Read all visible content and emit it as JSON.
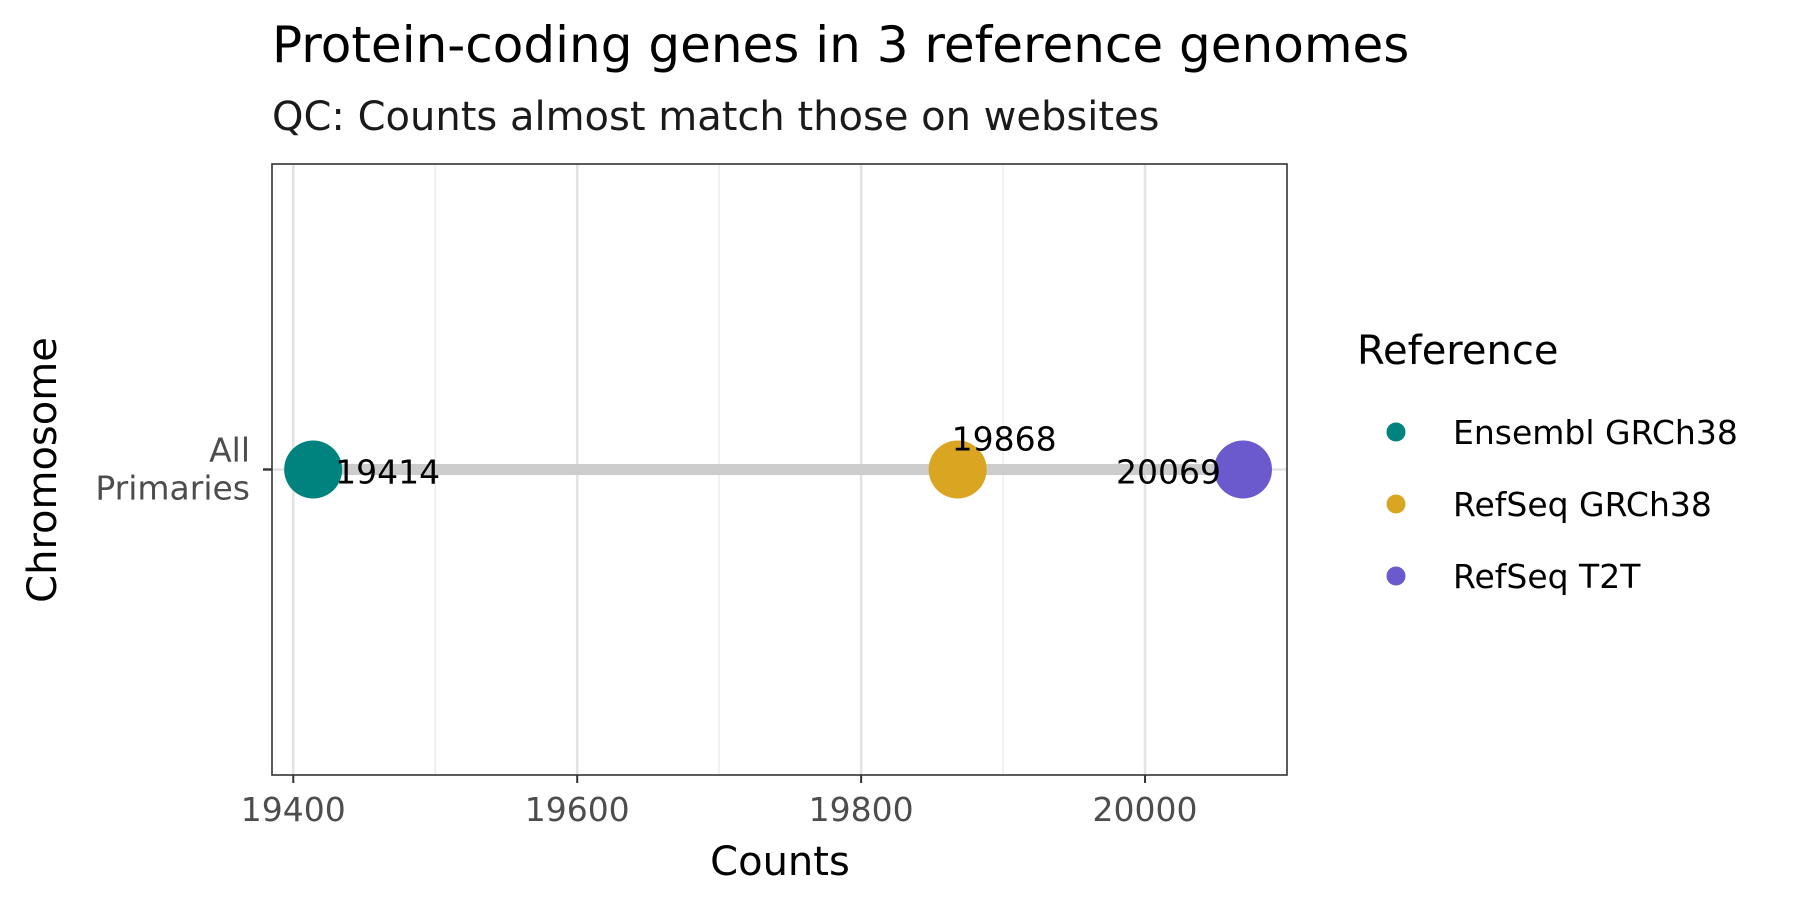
{
  "chart_data": {
    "type": "dumbbell",
    "title": "Protein-coding genes in 3 reference genomes",
    "subtitle": "QC: Counts almost match those on websites",
    "xlabel": "Counts",
    "ylabel": "Chromosome",
    "xlim": [
      19385,
      20100
    ],
    "x_ticks": [
      19400,
      19600,
      19800,
      20000
    ],
    "x_minor_ticks": [
      19500,
      19700,
      19900
    ],
    "categories": [
      "All\nPrimaries"
    ],
    "grid": "vertical",
    "legend": {
      "title": "Reference",
      "position": "right"
    },
    "series": [
      {
        "name": "Ensembl GRCh38",
        "color": "#00827F",
        "values": [
          19414
        ],
        "labels": [
          "19414"
        ]
      },
      {
        "name": "RefSeq GRCh38",
        "color": "#DAA520",
        "values": [
          19868
        ],
        "labels": [
          "19868"
        ]
      },
      {
        "name": "RefSeq T2T",
        "color": "#6A5ACD",
        "values": [
          20069
        ],
        "labels": [
          "20069"
        ]
      }
    ],
    "segment_color": "#cccccc"
  }
}
